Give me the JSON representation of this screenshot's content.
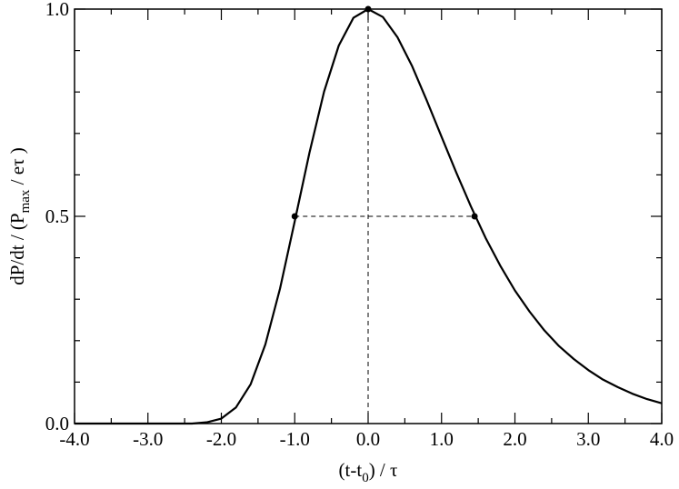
{
  "chart_data": {
    "type": "line",
    "xlabel_parts": [
      "(t-t",
      "0",
      ") / τ"
    ],
    "ylabel_parts": [
      "dP/dt  / (P",
      "max",
      " / eτ )"
    ],
    "x": [
      -4.0,
      -3.8,
      -3.6,
      -3.4,
      -3.2,
      -3.0,
      -2.8,
      -2.6,
      -2.4,
      -2.2,
      -2.0,
      -1.8,
      -1.6,
      -1.4,
      -1.2,
      -1.0,
      -0.8,
      -0.6,
      -0.4,
      -0.2,
      0,
      0.2,
      0.4,
      0.6,
      0.8,
      1.0,
      1.2,
      1.4,
      1.6,
      1.8,
      2.0,
      2.2,
      2.4,
      2.6,
      2.8,
      3.0,
      3.2,
      3.4,
      3.6,
      3.8,
      4.0
    ],
    "series": [
      {
        "color": "#000000",
        "values": [
          0,
          0,
          0,
          0,
          0,
          0,
          0,
          0,
          0,
          0.003,
          0.012,
          0.039,
          0.095,
          0.191,
          0.326,
          0.488,
          0.653,
          0.801,
          0.912,
          0.979,
          1.0,
          0.981,
          0.932,
          0.862,
          0.779,
          0.692,
          0.606,
          0.524,
          0.448,
          0.381,
          0.321,
          0.27,
          0.225,
          0.187,
          0.156,
          0.129,
          0.106,
          0.088,
          0.072,
          0.059,
          0.049
        ]
      }
    ],
    "markers": {
      "x": [
        -1.0,
        0,
        1.45
      ],
      "y": [
        0.5,
        1.0,
        0.5
      ]
    },
    "xlim": [
      -4,
      4
    ],
    "ylim": [
      0,
      1
    ],
    "xticks": [
      {
        "value": -4,
        "label": "-4.0"
      },
      {
        "value": -3,
        "label": "-3.0"
      },
      {
        "value": -2,
        "label": "-2.0"
      },
      {
        "value": -1,
        "label": "-1.0"
      },
      {
        "value": 0,
        "label": "0.0"
      },
      {
        "value": 1,
        "label": "1.0"
      },
      {
        "value": 2,
        "label": "2.0"
      },
      {
        "value": 3,
        "label": "3.0"
      },
      {
        "value": 4,
        "label": "4.0"
      }
    ],
    "xminor": [
      -3.5,
      -2.5,
      -1.5,
      -0.5,
      0.5,
      1.5,
      2.5,
      3.5
    ],
    "yticks": [
      {
        "value": 0,
        "label": "0.0"
      },
      {
        "value": 0.5,
        "label": "0.5"
      },
      {
        "value": 1,
        "label": "1.0"
      }
    ],
    "yminor": [
      0.1,
      0.2,
      0.3,
      0.4,
      0.6,
      0.7,
      0.8,
      0.9
    ]
  }
}
